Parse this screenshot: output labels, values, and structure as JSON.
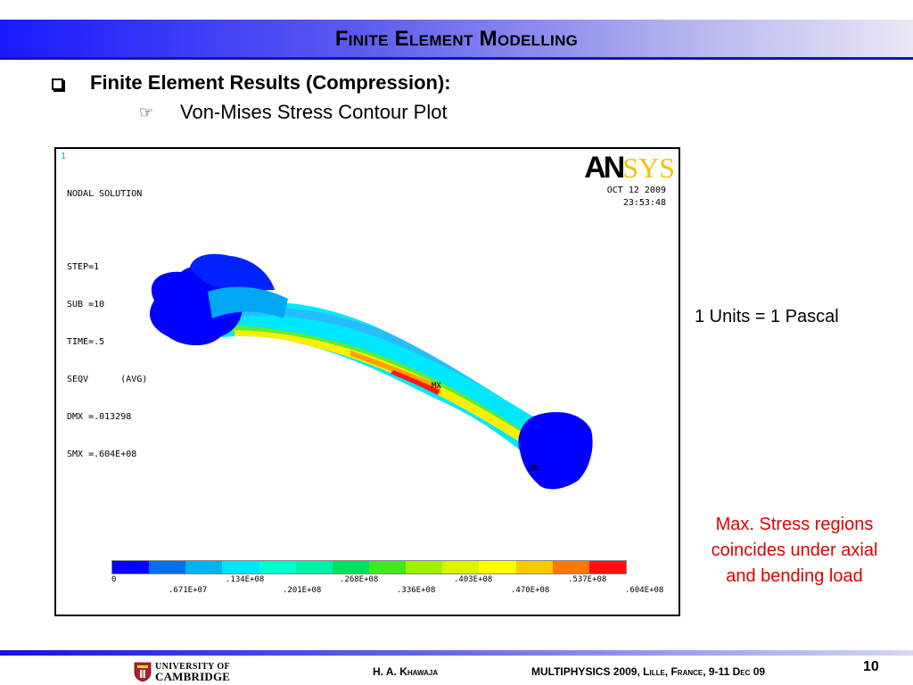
{
  "header": {
    "title": "Finite Element Modelling"
  },
  "content": {
    "bullet": "Finite Element Results (Compression):",
    "subbullet": "Von-Mises Stress Contour Plot",
    "bullet_icon": "checkbox-icon",
    "subbullet_icon": "pointing-hand-icon"
  },
  "plot": {
    "index": "1",
    "nodal_title": "NODAL SOLUTION",
    "params": [
      "STEP=1",
      "SUB =10",
      "TIME=.5",
      "SEQV      (AVG)",
      "DMX =.013298",
      "SMX =.604E+08"
    ],
    "logo_an": "AN",
    "logo_sys": "SYS",
    "date": "OCT 12 2009",
    "time": "23:53:48",
    "mx_label": "MX",
    "mn_label": "MN",
    "legend": {
      "colors": [
        "#0000ff",
        "#0070e8",
        "#00b4f0",
        "#00e4ff",
        "#00ffd0",
        "#00f0a8",
        "#00e060",
        "#40e820",
        "#a0f000",
        "#d8f400",
        "#ffff00",
        "#ffc800",
        "#ff7800",
        "#ff1010"
      ],
      "top_labels": [
        "0",
        ".134E+08",
        ".268E+08",
        ".403E+08",
        ".537E+08"
      ],
      "bottom_labels": [
        ".671E+07",
        ".201E+08",
        ".336E+08",
        ".470E+08",
        ".604E+08"
      ]
    }
  },
  "notes": {
    "units": "1 Units = 1 Pascal",
    "max_stress": "Max. Stress regions coincides under axial and bending load"
  },
  "footer": {
    "university_line1": "UNIVERSITY OF",
    "university_line2": "CAMBRIDGE",
    "author": "H. A. Khawaja",
    "conference": "MULTIPHYSICS 2009, Lille, France, 9-11 Dec 09",
    "page_number": "10"
  },
  "colors": {
    "title_gradient_start": "#1a1aff",
    "note_red": "#e00000",
    "ansys_yellow": "#f5c000"
  }
}
